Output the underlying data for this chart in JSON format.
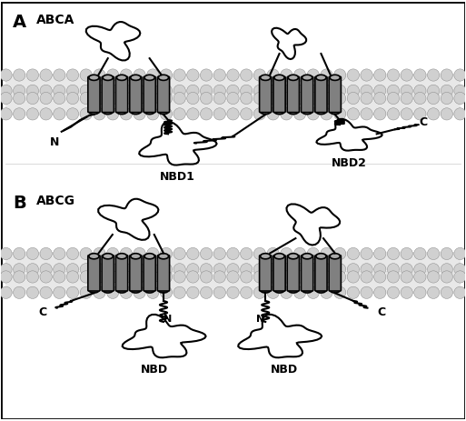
{
  "title": "",
  "bg_color": "#ffffff",
  "border_color": "#000000",
  "membrane_color_light": "#e8e8e8",
  "membrane_color_dark": "#c8c8c8",
  "helix_color": "#808080",
  "helix_edge": "#000000",
  "loop_color": "#ffffff",
  "loop_edge": "#000000",
  "label_A": "A",
  "label_ABCA": "ABCA",
  "label_B": "B",
  "label_ABCG": "ABCG",
  "label_NBD1": "NBD1",
  "label_NBD2": "NBD2",
  "label_NBD": "NBD",
  "label_N": "N",
  "label_C": "C",
  "figsize": [
    5.13,
    4.63
  ],
  "dpi": 100
}
